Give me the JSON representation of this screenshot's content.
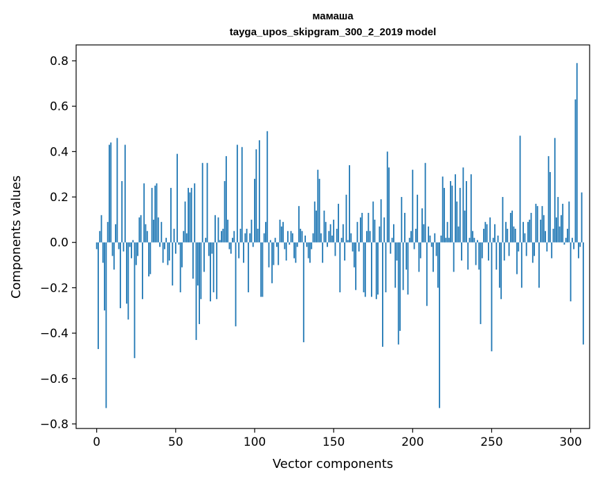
{
  "chart_data": {
    "type": "bar",
    "title": "мамаша",
    "subtitle": "tayga_upos_skipgram_300_2_2019 model",
    "xlabel": "Vector components",
    "ylabel": "Components values",
    "xlim": [
      -13,
      312
    ],
    "ylim": [
      -0.82,
      0.87
    ],
    "xticks": [
      0,
      50,
      100,
      150,
      200,
      250,
      300
    ],
    "xtick_labels": [
      "0",
      "50",
      "100",
      "150",
      "200",
      "250",
      "300"
    ],
    "yticks": [
      -0.8,
      -0.6,
      -0.4,
      -0.2,
      0.0,
      0.2,
      0.4,
      0.6,
      0.8
    ],
    "ytick_labels": [
      "−0.8",
      "−0.6",
      "−0.4",
      "−0.2",
      "0.0",
      "0.2",
      "0.4",
      "0.6",
      "0.8"
    ],
    "color": "#1f77b4",
    "grid": false,
    "values": [
      -0.03,
      -0.47,
      0.05,
      0.12,
      -0.09,
      -0.3,
      -0.73,
      0.09,
      0.43,
      0.44,
      -0.06,
      -0.12,
      0.08,
      0.46,
      -0.03,
      -0.29,
      0.27,
      -0.04,
      0.43,
      -0.27,
      -0.34,
      -0.02,
      -0.07,
      0.01,
      -0.51,
      -0.1,
      -0.06,
      0.11,
      0.12,
      -0.25,
      0.26,
      0.08,
      0.05,
      -0.15,
      -0.14,
      0.24,
      0.1,
      0.25,
      0.26,
      0.11,
      -0.02,
      0.09,
      -0.09,
      -0.03,
      0.02,
      -0.1,
      -0.08,
      0.24,
      -0.19,
      0.06,
      -0.05,
      0.39,
      -0.01,
      -0.22,
      -0.11,
      0.05,
      0.18,
      0.04,
      0.24,
      0.22,
      0.24,
      -0.16,
      0.26,
      -0.43,
      -0.19,
      -0.36,
      -0.25,
      0.35,
      -0.13,
      0.02,
      0.35,
      -0.06,
      -0.26,
      -0.05,
      -0.22,
      0.12,
      -0.25,
      0.11,
      0.01,
      0.05,
      0.06,
      0.27,
      0.38,
      0.1,
      -0.03,
      -0.05,
      0.02,
      0.05,
      -0.37,
      0.43,
      -0.07,
      0.06,
      0.42,
      -0.09,
      0.04,
      0.06,
      -0.22,
      0.04,
      0.1,
      -0.02,
      0.28,
      0.41,
      0.06,
      0.45,
      -0.24,
      -0.24,
      0.04,
      0.09,
      0.49,
      -0.11,
      0.01,
      -0.18,
      -0.1,
      0.02,
      -0.02,
      -0.1,
      0.1,
      0.07,
      0.09,
      -0.03,
      -0.08,
      0.05,
      -0.01,
      0.05,
      0.04,
      -0.07,
      -0.09,
      -0.02,
      0.16,
      0.06,
      0.05,
      -0.44,
      0.03,
      -0.02,
      -0.07,
      -0.09,
      -0.03,
      0.04,
      0.18,
      0.14,
      0.32,
      0.28,
      0.04,
      -0.09,
      0.14,
      0.09,
      -0.02,
      0.05,
      0.08,
      0.03,
      0.1,
      -0.06,
      0.06,
      0.17,
      -0.22,
      0.02,
      0.08,
      -0.08,
      0.21,
      0.01,
      0.34,
      0.04,
      -0.04,
      -0.11,
      -0.21,
      0.09,
      -0.04,
      0.11,
      0.13,
      -0.22,
      -0.24,
      0.05,
      0.13,
      0.05,
      -0.24,
      0.18,
      0.1,
      -0.25,
      -0.23,
      0.07,
      0.19,
      -0.46,
      0.11,
      -0.22,
      0.4,
      0.33,
      -0.05,
      0.02,
      0.08,
      -0.2,
      -0.08,
      -0.45,
      -0.39,
      0.2,
      -0.21,
      0.13,
      -0.12,
      -0.23,
      0.02,
      0.05,
      0.32,
      -0.03,
      0.06,
      0.21,
      -0.13,
      -0.07,
      0.15,
      0.08,
      0.35,
      -0.28,
      0.07,
      0.03,
      -0.02,
      -0.13,
      0.04,
      -0.06,
      -0.2,
      -0.73,
      0.03,
      0.29,
      0.24,
      0.02,
      0.09,
      0.02,
      0.27,
      0.25,
      -0.13,
      0.3,
      0.18,
      0.07,
      0.24,
      -0.08,
      0.33,
      0.14,
      0.27,
      -0.12,
      0.02,
      0.3,
      0.05,
      0.02,
      -0.1,
      0.01,
      -0.12,
      -0.36,
      -0.07,
      0.06,
      0.09,
      0.08,
      -0.08,
      0.11,
      -0.48,
      0.02,
      0.08,
      -0.12,
      0.03,
      -0.2,
      -0.25,
      0.2,
      -0.08,
      0.09,
      0.06,
      -0.06,
      0.13,
      0.14,
      0.07,
      0.06,
      -0.14,
      -0.04,
      0.47,
      -0.2,
      0.09,
      0.04,
      -0.06,
      0.09,
      0.1,
      0.13,
      -0.09,
      -0.06,
      0.17,
      0.16,
      -0.2,
      0.1,
      0.16,
      0.12,
      0.05,
      -0.04,
      0.38,
      0.31,
      -0.07,
      0.06,
      0.46,
      0.11,
      0.2,
      0.07,
      0.12,
      0.17,
      -0.01,
      0.02,
      0.06,
      0.18,
      -0.26,
      0.02,
      -0.03,
      0.63,
      0.79,
      -0.07,
      -0.02,
      0.22,
      -0.45
    ]
  }
}
